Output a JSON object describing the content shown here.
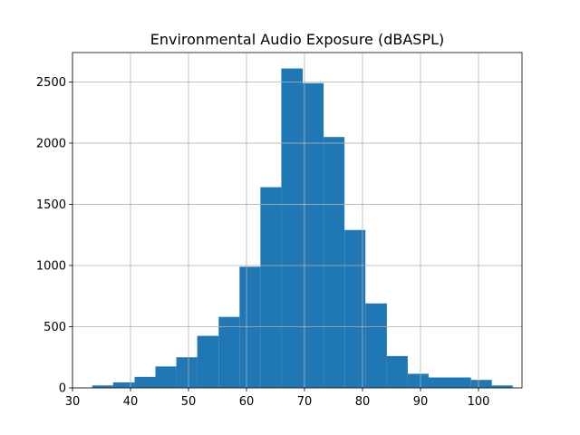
{
  "chart_data": {
    "type": "bar",
    "title": "Environmental Audio Exposure (dBASPL)",
    "xlabel": "",
    "ylabel": "",
    "xlim": [
      30,
      107.5
    ],
    "ylim": [
      0,
      2740
    ],
    "grid": true,
    "x_ticks": [
      30,
      40,
      50,
      60,
      70,
      80,
      90,
      100
    ],
    "y_ticks": [
      0,
      500,
      1000,
      1500,
      2000,
      2500
    ],
    "bar_color": "#1f77b4",
    "bin_edges": [
      33.4,
      37.0,
      40.7,
      44.3,
      47.9,
      51.5,
      55.2,
      58.8,
      62.4,
      66.0,
      69.7,
      73.3,
      76.9,
      80.5,
      84.2,
      87.8,
      91.4,
      95.0,
      98.7,
      102.3,
      105.9
    ],
    "values": [
      20,
      45,
      90,
      175,
      250,
      425,
      580,
      990,
      1640,
      2610,
      2490,
      2050,
      1290,
      690,
      260,
      115,
      85,
      85,
      65,
      20
    ]
  }
}
